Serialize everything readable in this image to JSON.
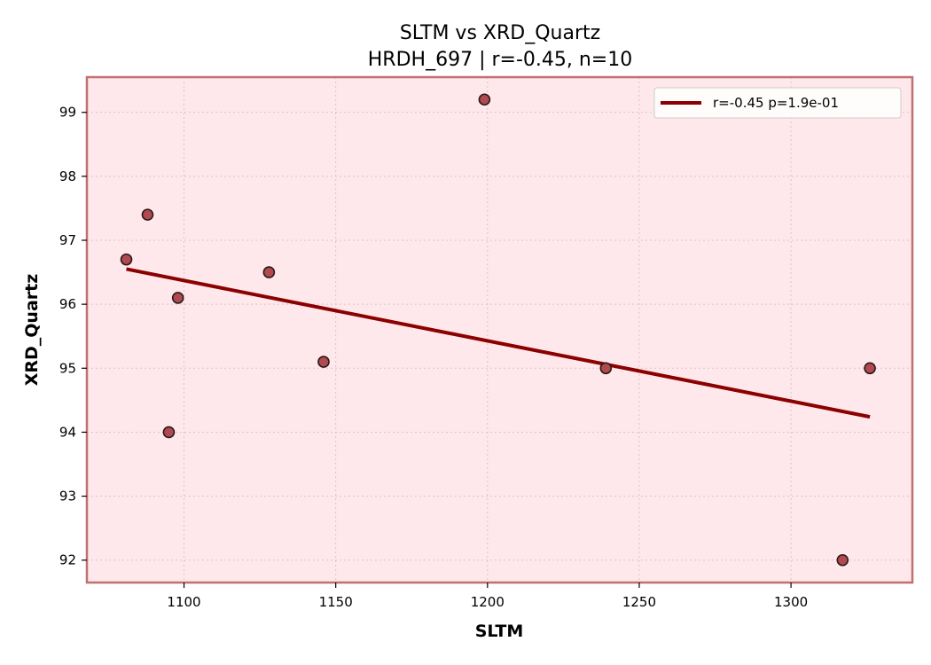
{
  "chart_data": {
    "type": "scatter",
    "title": "SLTM vs XRD_Quartz",
    "subtitle": "HRDH_697 | r=-0.45, n=10",
    "xlabel": "SLTM",
    "ylabel": "XRD_Quartz",
    "xlim": [
      1068,
      1340
    ],
    "ylim": [
      91.65,
      99.55
    ],
    "xticks": [
      1100,
      1150,
      1200,
      1250,
      1300
    ],
    "yticks": [
      92,
      93,
      94,
      95,
      96,
      97,
      98,
      99
    ],
    "grid": true,
    "legend_position": "top-right",
    "points": [
      {
        "x": 1081,
        "y": 96.7
      },
      {
        "x": 1088,
        "y": 97.4
      },
      {
        "x": 1095,
        "y": 94.0
      },
      {
        "x": 1098,
        "y": 96.1
      },
      {
        "x": 1128,
        "y": 96.5
      },
      {
        "x": 1146,
        "y": 95.1
      },
      {
        "x": 1199,
        "y": 99.2
      },
      {
        "x": 1239,
        "y": 95.0
      },
      {
        "x": 1317,
        "y": 92.0
      },
      {
        "x": 1326,
        "y": 95.0
      }
    ],
    "fit_line": {
      "label": "r=-0.45  p=1.9e-01",
      "x": [
        1081,
        1326
      ],
      "y": [
        96.55,
        94.24
      ]
    },
    "colors": {
      "background": "#ffe8eb",
      "frame": "#c07070",
      "point_fill": "#b04a4f",
      "point_edge": "#2a1a1a",
      "fit_line": "#8b0000",
      "grid": "#d8c4c8"
    }
  }
}
